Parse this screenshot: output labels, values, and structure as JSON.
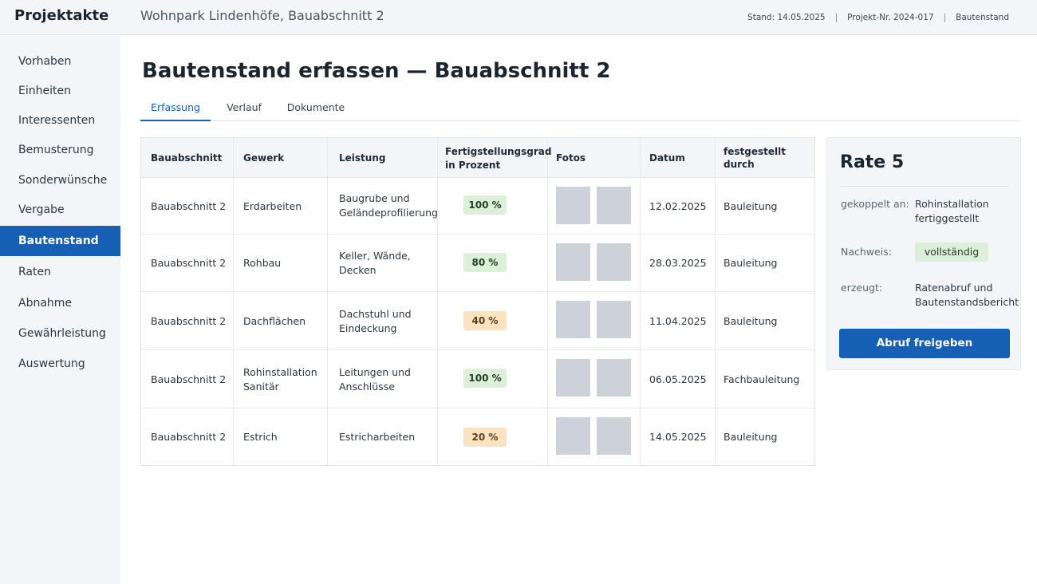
{
  "app": {
    "title": "Projektakte",
    "project": "Wohnpark Lindenhöfe, Bauabschnitt 2",
    "stand": "Stand: 14.05.2025",
    "project_nr": "Projekt-Nr. 2024-017",
    "section": "Bautenstand",
    "separator": "|"
  },
  "sidebar": {
    "items": [
      {
        "label": "Vorhaben"
      },
      {
        "label": "Einheiten"
      },
      {
        "label": "Interessenten"
      },
      {
        "label": "Bemusterung"
      },
      {
        "label": "Sonderwünsche"
      },
      {
        "label": "Vergabe"
      },
      {
        "label": "Bautenstand",
        "active": true
      },
      {
        "label": "Raten"
      },
      {
        "label": "Abnahme"
      },
      {
        "label": "Gewährleistung"
      },
      {
        "label": "Auswertung"
      }
    ]
  },
  "main": {
    "title": "Bautenstand erfassen — Bauabschnitt 2",
    "tabs": [
      {
        "label": "Erfassung",
        "active": true
      },
      {
        "label": "Verlauf"
      },
      {
        "label": "Dokumente"
      }
    ]
  },
  "table": {
    "headers": {
      "bauabschnitt": "Bauabschnitt",
      "gewerk": "Gewerk",
      "leistung": "Leistung",
      "grad_line1": "Fertigstellungsgrad",
      "grad_line2": "in Prozent",
      "fotos": "Fotos",
      "datum": "Datum",
      "durch": "festgestellt durch"
    },
    "rows": [
      {
        "bauabschnitt": "Bauabschnitt 2",
        "gewerk_1": "Erdarbeiten",
        "gewerk_2": "",
        "leistung_1": "Baugrube und",
        "leistung_2": "Geländeprofilierung",
        "grad": "100 %",
        "grad_value": 100,
        "status": "green",
        "datum": "12.02.2025",
        "durch": "Bauleitung"
      },
      {
        "bauabschnitt": "Bauabschnitt 2",
        "gewerk_1": "Rohbau",
        "gewerk_2": "",
        "leistung_1": "Keller, Wände,",
        "leistung_2": "Decken",
        "grad": "80 %",
        "grad_value": 80,
        "status": "green",
        "datum": "28.03.2025",
        "durch": "Bauleitung"
      },
      {
        "bauabschnitt": "Bauabschnitt 2",
        "gewerk_1": "Dachflächen",
        "gewerk_2": "",
        "leistung_1": "Dachstuhl und",
        "leistung_2": "Eindeckung",
        "grad": "40 %",
        "grad_value": 40,
        "status": "amber",
        "datum": "11.04.2025",
        "durch": "Bauleitung"
      },
      {
        "bauabschnitt": "Bauabschnitt 2",
        "gewerk_1": "Rohinstallation",
        "gewerk_2": "Sanitär",
        "leistung_1": "Leitungen und",
        "leistung_2": "Anschlüsse",
        "grad": "100 %",
        "grad_value": 100,
        "status": "green",
        "datum": "06.05.2025",
        "durch": "Fachbauleitung"
      },
      {
        "bauabschnitt": "Bauabschnitt 2",
        "gewerk_1": "Estrich",
        "gewerk_2": "",
        "leistung_1": "Estricharbeiten",
        "leistung_2": "",
        "grad": "20 %",
        "grad_value": 20,
        "status": "amber",
        "datum": "14.05.2025",
        "durch": "Bauleitung"
      }
    ]
  },
  "panel": {
    "title": "Rate 5",
    "gekoppelt_label": "gekoppelt an:",
    "gekoppelt_1": "Rohinstallation",
    "gekoppelt_2": "fertiggestellt",
    "nachweis_label": "Nachweis:",
    "nachweis_value": "vollständig",
    "erzeugt_label": "erzeugt:",
    "erzeugt_1": "Ratenabruf und",
    "erzeugt_2": "Bautenstandsbericht",
    "button": "Abruf freigeben"
  },
  "colors": {
    "accent": "#1560b4",
    "status_green": "#dcefd9",
    "status_amber": "#fbe3c2",
    "photo_placeholder": "#cdd2d8"
  }
}
